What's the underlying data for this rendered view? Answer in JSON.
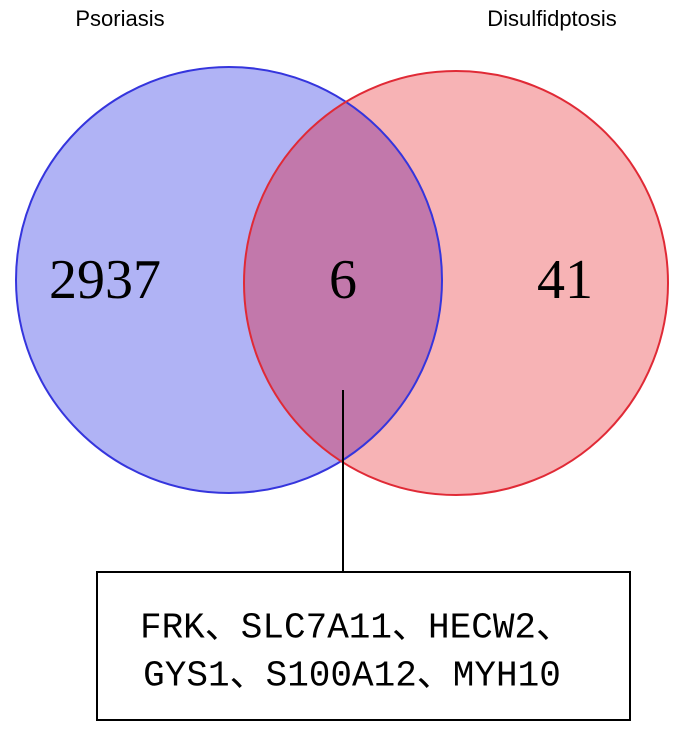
{
  "sets": [
    {
      "label": "Psoriasis",
      "count": 2937
    },
    {
      "label": "Disulfidptosis",
      "count": 41
    }
  ],
  "overlap": {
    "count": 6,
    "genes": [
      "FRK、SLC7A11、HECW2、",
      "GYS1、S100A12、MYH10"
    ]
  }
}
